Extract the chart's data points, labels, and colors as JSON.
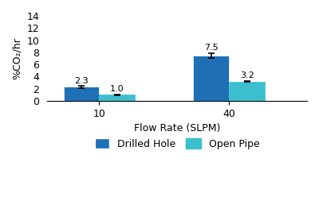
{
  "groups": [
    "10",
    "40"
  ],
  "group_positions": [
    1,
    3
  ],
  "bar_width": 0.55,
  "series": [
    {
      "label": "Drilled Hole",
      "values": [
        2.3,
        7.5
      ],
      "errors": [
        0.15,
        0.4
      ],
      "color": "#1F6FB5",
      "hatch": null
    },
    {
      "label": "Open Pipe",
      "values": [
        1.0,
        3.2
      ],
      "errors": [
        0.05,
        0.12
      ],
      "color": "#3BBFCF",
      "hatch": "///"
    }
  ],
  "xlabel": "Flow Rate (SLPM)",
  "ylabel": "%CO₂/hr",
  "ylim": [
    0,
    14
  ],
  "yticks": [
    0,
    2,
    4,
    6,
    8,
    10,
    12,
    14
  ],
  "xtick_labels": [
    "10",
    "40"
  ],
  "title": "",
  "legend_loc": "lower center",
  "background_color": "#ffffff"
}
